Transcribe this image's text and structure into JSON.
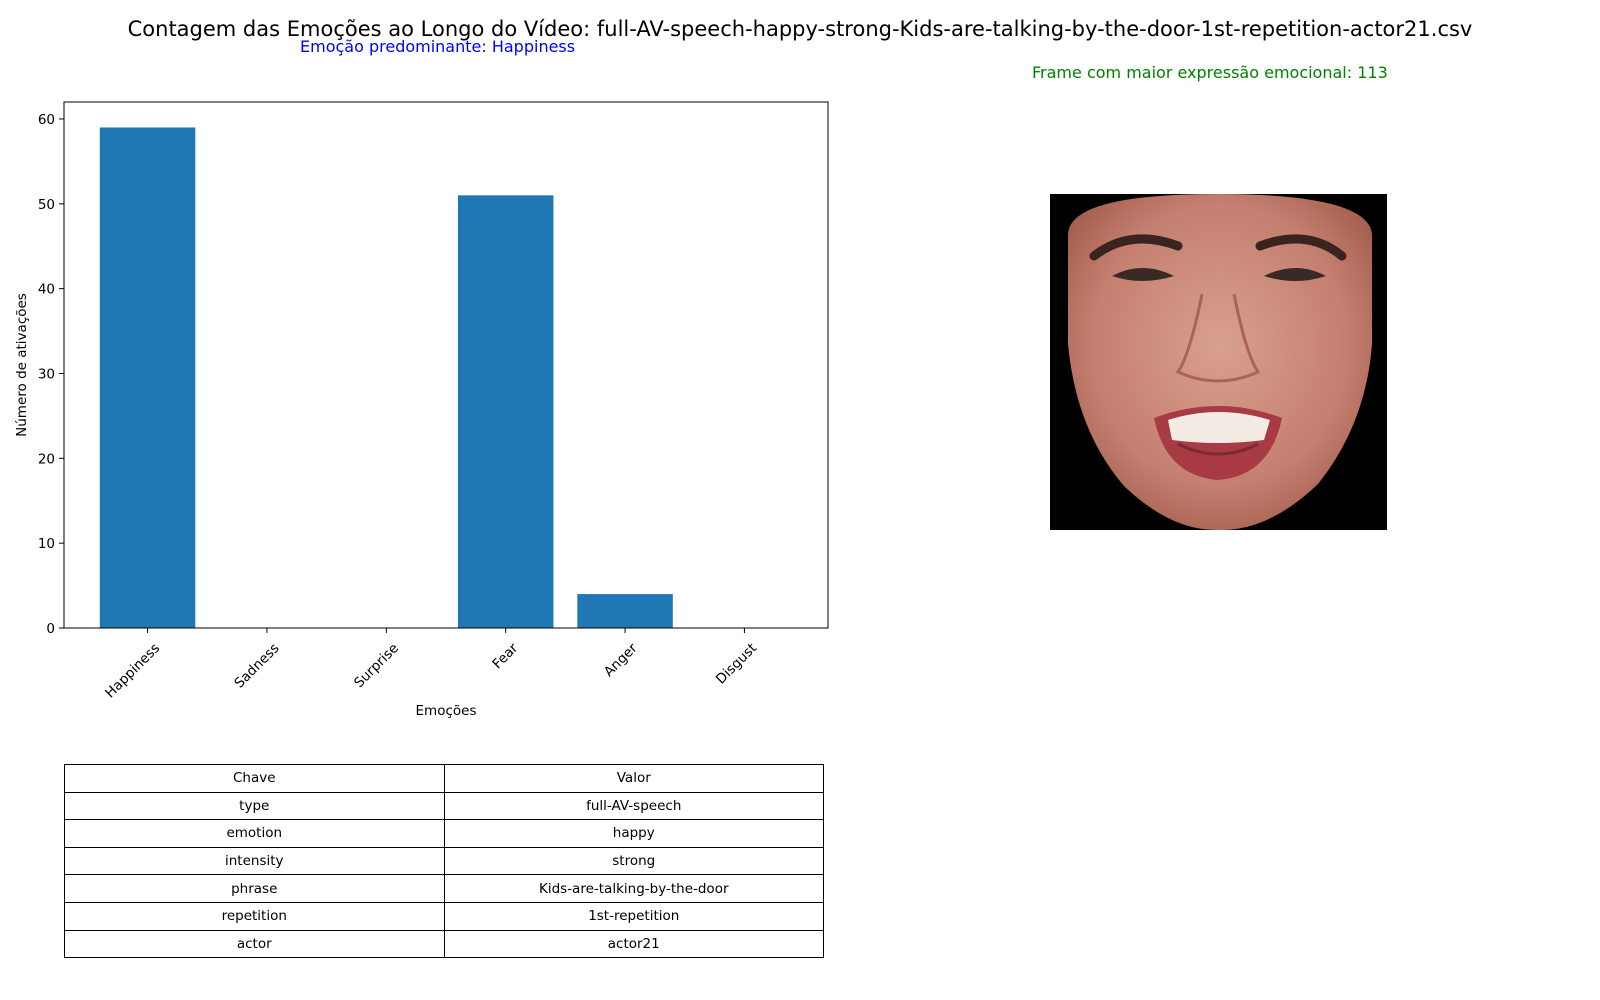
{
  "figure": {
    "suptitle": "Contagem das Emoções ao Longo do Vídeo: full-AV-speech-happy-strong-Kids-are-talking-by-the-door-1st-repetition-actor21.csv",
    "predominant_text": "Emoção predominante: Happiness",
    "frame_text": "Frame com maior expressão emocional: 113"
  },
  "colors": {
    "bar": "#1f77b4",
    "predominant_text": "#0000ff",
    "frame_text": "#008000"
  },
  "chart_data": {
    "type": "bar",
    "categories": [
      "Happiness",
      "Sadness",
      "Surprise",
      "Fear",
      "Anger",
      "Disgust"
    ],
    "values": [
      59,
      0,
      0,
      51,
      4,
      0
    ],
    "title": "",
    "xlabel": "Emoções",
    "ylabel": "Número de ativações",
    "ylim": [
      0,
      62
    ],
    "yticks": [
      0,
      10,
      20,
      30,
      40,
      50,
      60
    ],
    "grid": false,
    "tick_label_rotation": 45
  },
  "face_image": {
    "icon": "face-photo",
    "description_visible": false
  },
  "table": {
    "headers": [
      "Chave",
      "Valor"
    ],
    "rows": [
      [
        "type",
        "full-AV-speech"
      ],
      [
        "emotion",
        "happy"
      ],
      [
        "intensity",
        "strong"
      ],
      [
        "phrase",
        "Kids-are-talking-by-the-door"
      ],
      [
        "repetition",
        "1st-repetition"
      ],
      [
        "actor",
        "actor21"
      ]
    ]
  }
}
